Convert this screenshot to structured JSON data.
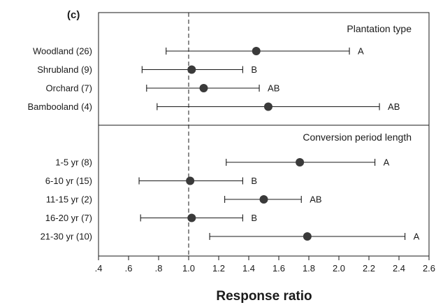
{
  "chart_data": {
    "type": "forest",
    "panel_label": "(c)",
    "xlabel": "Response ratio",
    "xlim": [
      0.4,
      2.6
    ],
    "xticks": [
      ".4",
      ".6",
      ".8",
      "1.0",
      "1.2",
      "1.4",
      "1.6",
      "1.8",
      "2.0",
      "2.2",
      "2.4",
      "2.6"
    ],
    "xtick_values": [
      0.4,
      0.6,
      0.8,
      1.0,
      1.2,
      1.4,
      1.6,
      1.8,
      2.0,
      2.2,
      2.4,
      2.6
    ],
    "reference_line": 1.0,
    "groups": [
      {
        "title": "Plantation type",
        "rows": [
          {
            "label": "Woodland (26)",
            "mean": 1.45,
            "lower": 0.85,
            "upper": 2.07,
            "letter": "A"
          },
          {
            "label": "Shrubland (9)",
            "mean": 1.02,
            "lower": 0.69,
            "upper": 1.36,
            "letter": "B"
          },
          {
            "label": "Orchard (7)",
            "mean": 1.1,
            "lower": 0.72,
            "upper": 1.47,
            "letter": "AB"
          },
          {
            "label": "Bambooland (4)",
            "mean": 1.53,
            "lower": 0.79,
            "upper": 2.27,
            "letter": "AB"
          }
        ]
      },
      {
        "title": "Conversion period length",
        "rows": [
          {
            "label": "1-5 yr (8)",
            "mean": 1.74,
            "lower": 1.25,
            "upper": 2.24,
            "letter": "A"
          },
          {
            "label": "6-10 yr (15)",
            "mean": 1.01,
            "lower": 0.67,
            "upper": 1.36,
            "letter": "B"
          },
          {
            "label": "11-15 yr (2)",
            "mean": 1.5,
            "lower": 1.24,
            "upper": 1.75,
            "letter": "AB"
          },
          {
            "label": "16-20 yr (7)",
            "mean": 1.02,
            "lower": 0.68,
            "upper": 1.36,
            "letter": "B"
          },
          {
            "label": "21-30 yr (10)",
            "mean": 1.79,
            "lower": 1.14,
            "upper": 2.44,
            "letter": "A"
          }
        ]
      }
    ]
  }
}
